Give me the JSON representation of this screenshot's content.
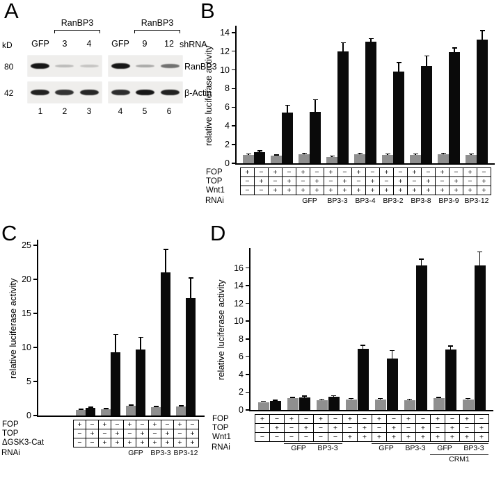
{
  "figure": {
    "panels": {
      "A": {
        "label": "A",
        "bracket_labels": [
          "RanBP3",
          "RanBP3"
        ],
        "kd_label": "kD",
        "shrna_label": "shRNA",
        "lane_headers": [
          "GFP",
          "3",
          "4",
          "GFP",
          "9",
          "12"
        ],
        "markers": [
          "80",
          "42"
        ],
        "row_labels": [
          "RanBP3",
          "β-Actin"
        ],
        "lane_numbers": [
          "1",
          "2",
          "3",
          "4",
          "5",
          "6"
        ],
        "bands": {
          "ranbp3": [
            0.95,
            0.22,
            0.18,
            0.95,
            0.3,
            0.55
          ],
          "actin": [
            0.9,
            0.82,
            0.88,
            0.85,
            0.95,
            0.9
          ]
        }
      },
      "B": {
        "label": "B"
      },
      "C": {
        "label": "C"
      },
      "D": {
        "label": "D"
      }
    }
  },
  "chart_data": [
    {
      "id": "B",
      "type": "bar",
      "title": "",
      "ylabel": "relative luciferase activity",
      "ylim": [
        0,
        14
      ],
      "yticks": [
        0,
        2,
        4,
        6,
        8,
        10,
        12,
        14
      ],
      "legend": "gray bars = FOP reporter, black bars = TOP reporter",
      "bars": [
        {
          "value": 0.9,
          "err": 0.1,
          "color": "gray"
        },
        {
          "value": 1.2,
          "err": 0.15,
          "color": "black"
        },
        {
          "value": 0.8,
          "err": 0.1,
          "color": "gray"
        },
        {
          "value": 5.4,
          "err": 0.8,
          "color": "black"
        },
        {
          "value": 1.0,
          "err": 0.1,
          "color": "gray"
        },
        {
          "value": 5.5,
          "err": 1.3,
          "color": "black"
        },
        {
          "value": 0.7,
          "err": 0.1,
          "color": "gray"
        },
        {
          "value": 12.0,
          "err": 0.9,
          "color": "black"
        },
        {
          "value": 1.0,
          "err": 0.1,
          "color": "gray"
        },
        {
          "value": 13.0,
          "err": 0.35,
          "color": "black"
        },
        {
          "value": 0.9,
          "err": 0.1,
          "color": "gray"
        },
        {
          "value": 9.8,
          "err": 1.0,
          "color": "black"
        },
        {
          "value": 0.9,
          "err": 0.1,
          "color": "gray"
        },
        {
          "value": 10.4,
          "err": 1.1,
          "color": "black"
        },
        {
          "value": 1.0,
          "err": 0.1,
          "color": "gray"
        },
        {
          "value": 11.9,
          "err": 0.45,
          "color": "black"
        },
        {
          "value": 0.9,
          "err": 0.1,
          "color": "gray"
        },
        {
          "value": 13.2,
          "err": 1.0,
          "color": "black"
        }
      ],
      "table": {
        "rows": [
          {
            "label": "FOP",
            "cells": "+−+−+−+−+−+−+−+−+−"
          },
          {
            "label": "TOP",
            "cells": "−+−+−+−+−+−+−+−+−+"
          },
          {
            "label": "Wnt1",
            "cells": "−−++++++++++++++++"
          }
        ],
        "rnai_label": "RNAi",
        "rnai_groups": [
          {
            "label": "GFP",
            "start": 4,
            "span": 2
          },
          {
            "label": "BP3-3",
            "start": 6,
            "span": 2
          },
          {
            "label": "BP3-4",
            "start": 8,
            "span": 2
          },
          {
            "label": "BP3-2",
            "start": 10,
            "span": 2
          },
          {
            "label": "BP3-8",
            "start": 12,
            "span": 2
          },
          {
            "label": "BP3-9",
            "start": 14,
            "span": 2
          },
          {
            "label": "BP3-12",
            "start": 16,
            "span": 2
          }
        ]
      }
    },
    {
      "id": "C",
      "type": "bar",
      "title": "",
      "ylabel": "relative luciferase activity",
      "ylim": [
        0,
        25
      ],
      "yticks": [
        0,
        5,
        10,
        15,
        20,
        25
      ],
      "legend": "gray bars = FOP reporter, black bars = TOP reporter",
      "bars": [
        {
          "value": 0.8,
          "err": 0.1,
          "color": "gray"
        },
        {
          "value": 1.1,
          "err": 0.12,
          "color": "black"
        },
        {
          "value": 0.9,
          "err": 0.1,
          "color": "gray"
        },
        {
          "value": 9.3,
          "err": 2.6,
          "color": "black"
        },
        {
          "value": 1.4,
          "err": 0.15,
          "color": "gray"
        },
        {
          "value": 9.7,
          "err": 1.8,
          "color": "black"
        },
        {
          "value": 1.2,
          "err": 0.12,
          "color": "gray"
        },
        {
          "value": 21.0,
          "err": 3.4,
          "color": "black"
        },
        {
          "value": 1.3,
          "err": 0.12,
          "color": "gray"
        },
        {
          "value": 17.2,
          "err": 3.0,
          "color": "black"
        }
      ],
      "table": {
        "rows": [
          {
            "label": "FOP",
            "cells": "+−+−+−+−+−"
          },
          {
            "label": "TOP",
            "cells": "−+−+−+−+−+"
          },
          {
            "label": "ΔGSK3-Cat",
            "cells": "−−++++++++"
          }
        ],
        "rnai_label": "RNAi",
        "rnai_groups": [
          {
            "label": "GFP",
            "start": 4,
            "span": 2
          },
          {
            "label": "BP3-3",
            "start": 6,
            "span": 2
          },
          {
            "label": "BP3-12",
            "start": 8,
            "span": 2
          }
        ]
      }
    },
    {
      "id": "D",
      "type": "bar",
      "title": "",
      "ylabel": "relative luciferase activity",
      "ylim": [
        0,
        16
      ],
      "yticks": [
        0,
        2,
        4,
        6,
        8,
        10,
        12,
        14,
        16
      ],
      "legend": "gray bars = FOP reporter, black bars = TOP reporter",
      "bars": [
        {
          "value": 0.9,
          "err": 0.08,
          "color": "gray"
        },
        {
          "value": 1.0,
          "err": 0.1,
          "color": "black"
        },
        {
          "value": 1.3,
          "err": 0.12,
          "color": "gray"
        },
        {
          "value": 1.4,
          "err": 0.15,
          "color": "black"
        },
        {
          "value": 1.1,
          "err": 0.1,
          "color": "gray"
        },
        {
          "value": 1.5,
          "err": 0.12,
          "color": "black"
        },
        {
          "value": 1.2,
          "err": 0.1,
          "color": "gray"
        },
        {
          "value": 6.9,
          "err": 0.4,
          "color": "black"
        },
        {
          "value": 1.2,
          "err": 0.1,
          "color": "gray"
        },
        {
          "value": 5.8,
          "err": 0.9,
          "color": "black"
        },
        {
          "value": 1.1,
          "err": 0.1,
          "color": "gray"
        },
        {
          "value": 16.3,
          "err": 0.7,
          "color": "black"
        },
        {
          "value": 1.3,
          "err": 0.12,
          "color": "gray"
        },
        {
          "value": 6.8,
          "err": 0.4,
          "color": "black"
        },
        {
          "value": 1.2,
          "err": 0.1,
          "color": "gray"
        },
        {
          "value": 16.3,
          "err": 1.5,
          "color": "black"
        }
      ],
      "table": {
        "rows": [
          {
            "label": "FOP",
            "cells": "+−+−+−+−+−+−+−+−"
          },
          {
            "label": "TOP",
            "cells": "−+−+−+−+−+−+−+−+"
          },
          {
            "label": "Wnt1",
            "cells": "−−−−−−++++++++++"
          }
        ],
        "rnai_label": "RNAi",
        "rnai_groups": [
          {
            "label": "GFP",
            "start": 2,
            "span": 2
          },
          {
            "label": "BP3-3",
            "start": 4,
            "span": 2
          },
          {
            "label": "GFP",
            "start": 8,
            "span": 2
          },
          {
            "label": "BP3-3",
            "start": 10,
            "span": 2
          },
          {
            "label": "GFP",
            "start": 12,
            "span": 2
          },
          {
            "label": "BP3-3",
            "start": 14,
            "span": 2
          }
        ],
        "crm1": {
          "label": "CRM1",
          "start": 12,
          "span": 4
        }
      }
    }
  ]
}
